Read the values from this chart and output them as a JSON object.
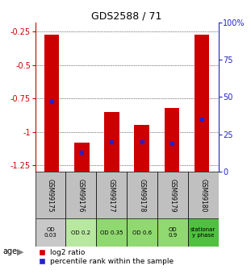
{
  "title": "GDS2588 / 71",
  "samples": [
    "GSM99175",
    "GSM99176",
    "GSM99177",
    "GSM99178",
    "GSM99179",
    "GSM99180"
  ],
  "log2_tops": [
    -0.27,
    -1.08,
    -0.85,
    -0.95,
    -0.82,
    -0.27
  ],
  "percentile_values": [
    47,
    13,
    20,
    20,
    19,
    35
  ],
  "ylim_left": [
    -1.3,
    -0.18
  ],
  "ylim_right": [
    0,
    100
  ],
  "yticks_left": [
    -1.25,
    -1.0,
    -0.75,
    -0.5,
    -0.25
  ],
  "ytick_labels_left": [
    "-1.25",
    "-1",
    "-0.75",
    "-0.5",
    "-0.25"
  ],
  "yticks_right": [
    0,
    25,
    50,
    75,
    100
  ],
  "ytick_labels_right": [
    "0",
    "25",
    "50",
    "75",
    "100%"
  ],
  "age_labels": [
    "OD\n0.03",
    "OD 0.2",
    "OD 0.35",
    "OD 0.6",
    "OD\n0.9",
    "stationar\ny phase"
  ],
  "age_bg_colors": [
    "#c8c8c8",
    "#b8e8a0",
    "#90d870",
    "#90d870",
    "#90d870",
    "#50c040"
  ],
  "sample_bg_color": "#c0c0c0",
  "bar_color": "#cc0000",
  "marker_color": "#2222cc",
  "left_axis_color": "#cc0000",
  "right_axis_color": "#2222cc",
  "legend_red_label": "log2 ratio",
  "legend_blue_label": "percentile rank within the sample",
  "age_label": "age",
  "bar_bottom": -1.3
}
